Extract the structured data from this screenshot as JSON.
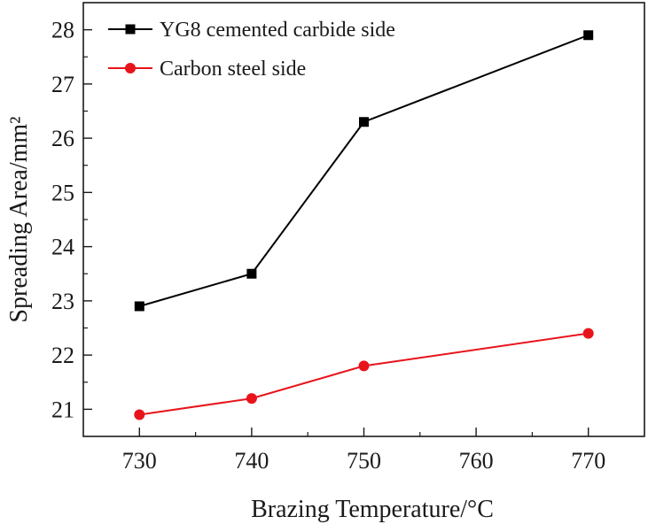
{
  "chart_data": {
    "type": "line",
    "title": "",
    "xlabel": "Brazing Temperature/°C",
    "ylabel": "Spreading Area/mm²",
    "xlim": [
      725,
      775
    ],
    "ylim": [
      20.5,
      28.5
    ],
    "x_ticks": [
      730,
      740,
      750,
      760,
      770
    ],
    "y_ticks": [
      21,
      22,
      23,
      24,
      25,
      26,
      27,
      28
    ],
    "grid": false,
    "legend_position": "top-left",
    "x": [
      730,
      740,
      750,
      770
    ],
    "series": [
      {
        "name": "YG8 cemented carbide side",
        "values": [
          22.9,
          23.5,
          26.3,
          27.9
        ],
        "color": "#000000",
        "marker": "square"
      },
      {
        "name": "Carbon steel side",
        "values": [
          20.9,
          21.2,
          21.8,
          22.4
        ],
        "color": "#e8141b",
        "marker": "circle"
      }
    ]
  }
}
